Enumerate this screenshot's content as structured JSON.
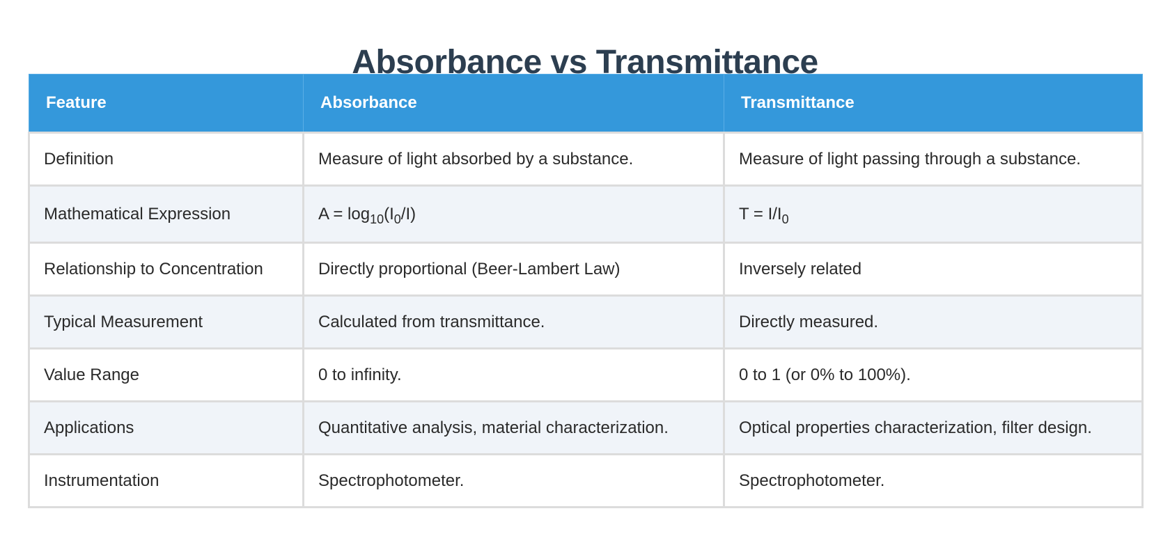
{
  "title": "Absorbance vs Transmittance",
  "table": {
    "headers": [
      "Feature",
      "Absorbance",
      "Transmittance"
    ],
    "rows": [
      {
        "feature": "Definition",
        "absorbance": "Measure of light absorbed by a substance.",
        "transmittance": "Measure of light passing through a substance."
      },
      {
        "feature": "Mathematical Expression",
        "absorbance": {
          "a": "A = log",
          "b": "10",
          "c": "(I",
          "d": "0",
          "e": "/I)"
        },
        "transmittance": {
          "a": "T = I/I",
          "b": "0"
        }
      },
      {
        "feature": "Relationship to Concentration",
        "absorbance": "Directly proportional (Beer-Lambert Law)",
        "transmittance": "Inversely related"
      },
      {
        "feature": "Typical Measurement",
        "absorbance": "Calculated from transmittance.",
        "transmittance": "Directly measured."
      },
      {
        "feature": "Value Range",
        "absorbance": "0 to infinity.",
        "transmittance": "0 to 1 (or 0% to 100%)."
      },
      {
        "feature": "Applications",
        "absorbance": "Quantitative analysis, material characterization.",
        "transmittance": "Optical properties characterization, filter design."
      },
      {
        "feature": "Instrumentation",
        "absorbance": "Spectrophotometer.",
        "transmittance": "Spectrophotometer."
      }
    ]
  },
  "colors": {
    "header_bg": "#3498db",
    "title": "#2c3e50",
    "stripe": "#f0f4f9",
    "border": "#dcdcdc"
  }
}
